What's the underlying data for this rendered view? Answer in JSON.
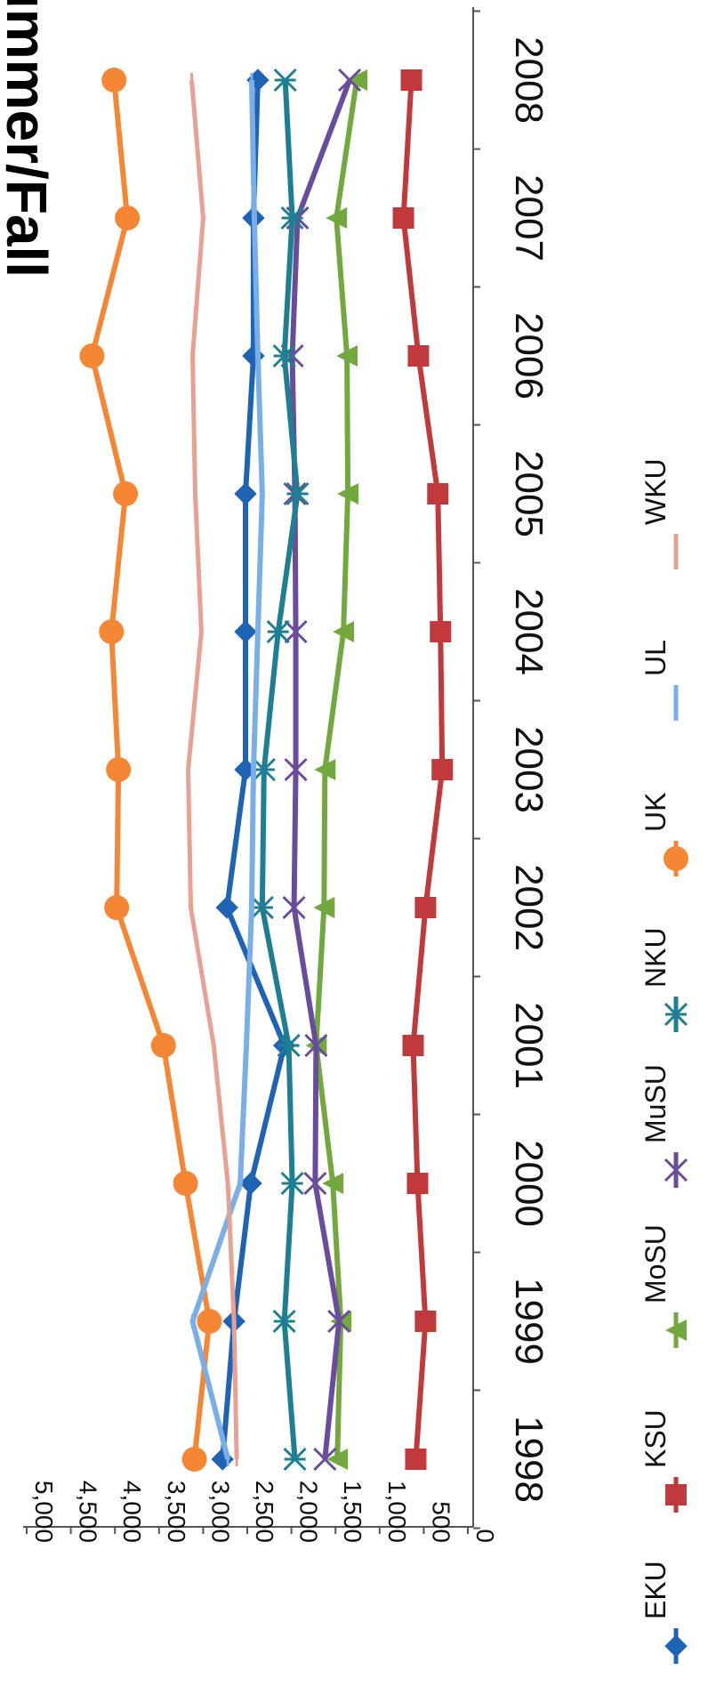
{
  "chart_data": {
    "type": "line",
    "title": "Summer/Fall",
    "title_visible_fragment": "Summer/Fall",
    "orientation": "rotated-90-clockwise",
    "x": [
      "1998",
      "1999",
      "2000",
      "2001",
      "2002",
      "2003",
      "2004",
      "2005",
      "2006",
      "2007",
      "2008"
    ],
    "ylim": [
      0,
      5000
    ],
    "yticks": [
      0,
      500,
      1000,
      1500,
      2000,
      2500,
      3000,
      3500,
      4000,
      4500,
      5000
    ],
    "ytick_labels": [
      "0",
      "500",
      "1,000",
      "1,500",
      "2,000",
      "2,500",
      "3,000",
      "3,500",
      "4,000",
      "4,500",
      "5,000"
    ],
    "grid": false,
    "legend_position": "bottom",
    "series": [
      {
        "name": "EKU",
        "color": "#1f63b5",
        "marker": "diamond",
        "values": [
          2780,
          2650,
          2460,
          2080,
          2730,
          2520,
          2520,
          2520,
          2430,
          2430,
          2380
        ]
      },
      {
        "name": "KSU",
        "color": "#c0393b",
        "marker": "square",
        "values": [
          590,
          480,
          570,
          620,
          480,
          290,
          310,
          340,
          560,
          730,
          640
        ]
      },
      {
        "name": "MoSU",
        "color": "#73a83e",
        "marker": "triangle",
        "values": [
          1480,
          1440,
          1530,
          1720,
          1630,
          1620,
          1410,
          1360,
          1370,
          1490,
          1260
        ]
      },
      {
        "name": "MuSU",
        "color": "#6a4c9c",
        "marker": "x",
        "values": [
          1620,
          1460,
          1730,
          1720,
          1970,
          1950,
          1950,
          1960,
          1990,
          1930,
          1340
        ]
      },
      {
        "name": "NKU",
        "color": "#1d7f91",
        "marker": "asterisk",
        "values": [
          1960,
          2080,
          1990,
          2030,
          2330,
          2310,
          2150,
          1930,
          2080,
          1990,
          2070
        ]
      },
      {
        "name": "UK",
        "color": "#f58634",
        "marker": "circle",
        "values": [
          3100,
          2930,
          3200,
          3450,
          3980,
          3960,
          4040,
          3880,
          4260,
          3860,
          4010
        ]
      },
      {
        "name": "UL",
        "color": "#7aaee6",
        "marker": "dash",
        "values": [
          2720,
          3120,
          2580,
          2510,
          2450,
          2430,
          2380,
          2330,
          2380,
          2420,
          2450
        ]
      },
      {
        "name": "WKU",
        "color": "#e8a093",
        "marker": "dash",
        "values": [
          2620,
          2650,
          2720,
          2880,
          3140,
          3170,
          3020,
          3090,
          3120,
          3000,
          3130
        ]
      }
    ]
  }
}
